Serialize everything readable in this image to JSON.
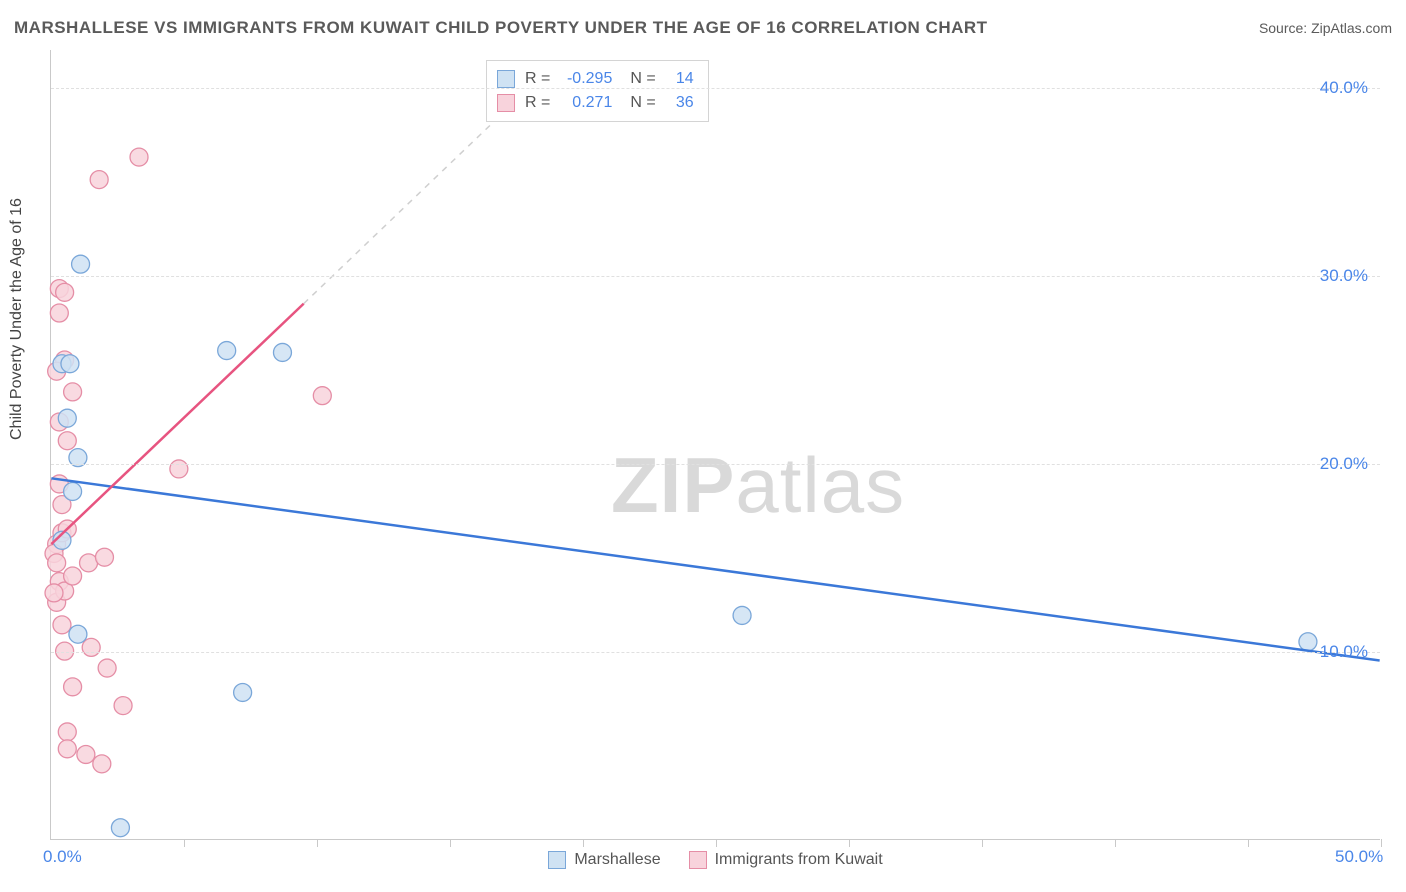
{
  "header": {
    "title": "MARSHALLESE VS IMMIGRANTS FROM KUWAIT CHILD POVERTY UNDER THE AGE OF 16 CORRELATION CHART",
    "source": "Source: ZipAtlas.com"
  },
  "y_axis": {
    "label": "Child Poverty Under the Age of 16"
  },
  "watermark": {
    "bold": "ZIP",
    "rest": "atlas"
  },
  "chart": {
    "type": "scatter",
    "xlim": [
      0,
      50
    ],
    "ylim": [
      0,
      42
    ],
    "x_ticks_minor": [
      5,
      10,
      15,
      20,
      25,
      30,
      35,
      40,
      45,
      50
    ],
    "x_ticks_labeled": [
      {
        "v": 0,
        "label": "0.0%"
      },
      {
        "v": 50,
        "label": "50.0%"
      }
    ],
    "y_grid": [
      10,
      20,
      30,
      40
    ],
    "y_ticks_labeled": [
      {
        "v": 10,
        "label": "10.0%"
      },
      {
        "v": 20,
        "label": "20.0%"
      },
      {
        "v": 30,
        "label": "30.0%"
      },
      {
        "v": 40,
        "label": "40.0%"
      }
    ],
    "background_color": "#ffffff",
    "grid_color": "#e0e0e0",
    "axis_color": "#c9c9c9",
    "tick_label_color": "#4a86e8",
    "marker_radius": 9,
    "series": [
      {
        "name": "Marshallese",
        "marker_fill": "#cfe2f3",
        "marker_stroke": "#7aa7d9",
        "line_color": "#3b78d8",
        "line_width": 2.5,
        "line_dash": "none",
        "trend": {
          "x1": 0,
          "y1": 19.2,
          "x2": 50,
          "y2": 9.5
        },
        "R": "-0.295",
        "N": "14",
        "points": [
          [
            1.1,
            30.6
          ],
          [
            0.4,
            25.3
          ],
          [
            0.7,
            25.3
          ],
          [
            0.6,
            22.4
          ],
          [
            1.0,
            20.3
          ],
          [
            6.6,
            26.0
          ],
          [
            8.7,
            25.9
          ],
          [
            0.8,
            18.5
          ],
          [
            1.0,
            10.9
          ],
          [
            7.2,
            7.8
          ],
          [
            2.6,
            0.6
          ],
          [
            26.0,
            11.9
          ],
          [
            47.3,
            10.5
          ],
          [
            0.4,
            15.9
          ]
        ]
      },
      {
        "name": "Immigrants from Kuwait",
        "marker_fill": "#f8d3dc",
        "marker_stroke": "#e58ea6",
        "line_color": "#e75480",
        "line_width": 2.5,
        "line_dash": "none",
        "trend": {
          "x1": 0,
          "y1": 15.7,
          "x2": 9.5,
          "y2": 28.5
        },
        "trend_ext": {
          "x1": 9.5,
          "y1": 28.5,
          "x2": 18.0,
          "y2": 40.0
        },
        "R": "0.271",
        "N": "36",
        "points": [
          [
            3.3,
            36.3
          ],
          [
            1.8,
            35.1
          ],
          [
            0.3,
            29.3
          ],
          [
            0.5,
            29.1
          ],
          [
            0.3,
            28.0
          ],
          [
            0.5,
            25.5
          ],
          [
            0.2,
            24.9
          ],
          [
            0.8,
            23.8
          ],
          [
            0.3,
            22.2
          ],
          [
            4.8,
            19.7
          ],
          [
            0.4,
            17.8
          ],
          [
            10.2,
            23.6
          ],
          [
            0.2,
            15.7
          ],
          [
            0.4,
            16.3
          ],
          [
            0.1,
            15.2
          ],
          [
            0.2,
            14.7
          ],
          [
            1.4,
            14.7
          ],
          [
            2.0,
            15.0
          ],
          [
            0.3,
            13.7
          ],
          [
            0.2,
            12.6
          ],
          [
            0.5,
            13.2
          ],
          [
            0.5,
            10.0
          ],
          [
            1.5,
            10.2
          ],
          [
            2.1,
            9.1
          ],
          [
            0.8,
            8.1
          ],
          [
            2.7,
            7.1
          ],
          [
            0.6,
            5.7
          ],
          [
            0.6,
            4.8
          ],
          [
            1.3,
            4.5
          ],
          [
            1.9,
            4.0
          ],
          [
            0.3,
            18.9
          ],
          [
            0.6,
            16.5
          ],
          [
            0.8,
            14.0
          ],
          [
            0.1,
            13.1
          ],
          [
            0.6,
            21.2
          ],
          [
            0.4,
            11.4
          ]
        ]
      }
    ]
  },
  "stats_box": {
    "rows": [
      {
        "series_index": 0,
        "R_label": "R =",
        "N_label": "N ="
      },
      {
        "series_index": 1,
        "R_label": "R =",
        "N_label": "N ="
      }
    ]
  },
  "legend": {
    "items": [
      {
        "series_index": 0
      },
      {
        "series_index": 1
      }
    ]
  }
}
